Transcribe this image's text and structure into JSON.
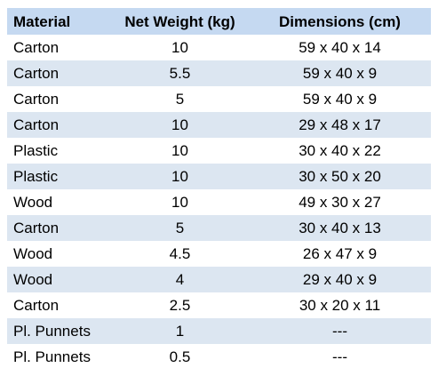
{
  "table": {
    "header": [
      "Material",
      "Net Weight (kg)",
      "Dimensions (cm)"
    ],
    "rows": [
      [
        "Carton",
        10,
        "59 x 40 x 14"
      ],
      [
        "Carton",
        5.5,
        "59 x 40 x 9"
      ],
      [
        "Carton",
        5,
        "59 x 40 x 9"
      ],
      [
        "Carton",
        10,
        "29 x 48 x 17"
      ],
      [
        "Plastic",
        10,
        "30 x 40 x 22"
      ],
      [
        "Plastic",
        10,
        "30 x 50 x 20"
      ],
      [
        "Wood",
        10,
        "49 x 30 x 27"
      ],
      [
        "Carton",
        5,
        "30 x 40 x 13"
      ],
      [
        "Wood",
        4.5,
        "26 x 47 x 9"
      ],
      [
        "Wood",
        4,
        "29 x 40 x 9"
      ],
      [
        "Carton",
        2.5,
        "30 x 20 x 11"
      ],
      [
        "Pl. Punnets",
        1,
        "---"
      ],
      [
        "Pl. Punnets",
        0.5,
        "---"
      ]
    ]
  }
}
